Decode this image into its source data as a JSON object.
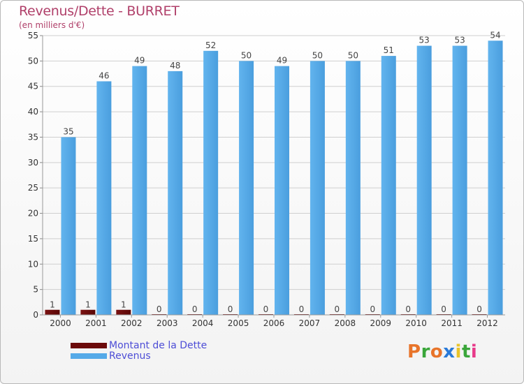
{
  "header": {
    "title": "Revenus/Dette - BURRET",
    "subtitle": "(en milliers d'€)"
  },
  "chart_data": {
    "type": "bar",
    "title": "Revenus/Dette - BURRET",
    "subtitle": "(en milliers d'€)",
    "categories": [
      "2000",
      "2001",
      "2002",
      "2003",
      "2004",
      "2005",
      "2006",
      "2007",
      "2008",
      "2009",
      "2010",
      "2011",
      "2012"
    ],
    "series": [
      {
        "name": "Montant de la Dette",
        "color": "#6b0a0a",
        "values": [
          1,
          1,
          1,
          0,
          0,
          0,
          0,
          0,
          0,
          0,
          0,
          0,
          0
        ]
      },
      {
        "name": "Revenus",
        "color": "#55aae8",
        "values": [
          35,
          46,
          49,
          48,
          52,
          50,
          49,
          50,
          50,
          51,
          53,
          53,
          54
        ]
      }
    ],
    "ylim": [
      0,
      55
    ],
    "yticks": [
      0,
      5,
      10,
      15,
      20,
      25,
      30,
      35,
      40,
      45,
      50,
      55
    ],
    "grid": true,
    "legend": "bottom-left"
  },
  "legend": {
    "items": [
      {
        "label": "Montant de la Dette",
        "color": "#6b0a0a"
      },
      {
        "label": "Revenus",
        "color": "#55aae8"
      }
    ]
  },
  "logo": {
    "letters": [
      "P",
      "r",
      "o",
      "x",
      "i",
      "t",
      "i"
    ],
    "colors": [
      "#e8742a",
      "#3aa63a",
      "#e8742a",
      "#2a7ad8",
      "#e8c32a",
      "#3aa63a",
      "#e83a8a"
    ]
  }
}
